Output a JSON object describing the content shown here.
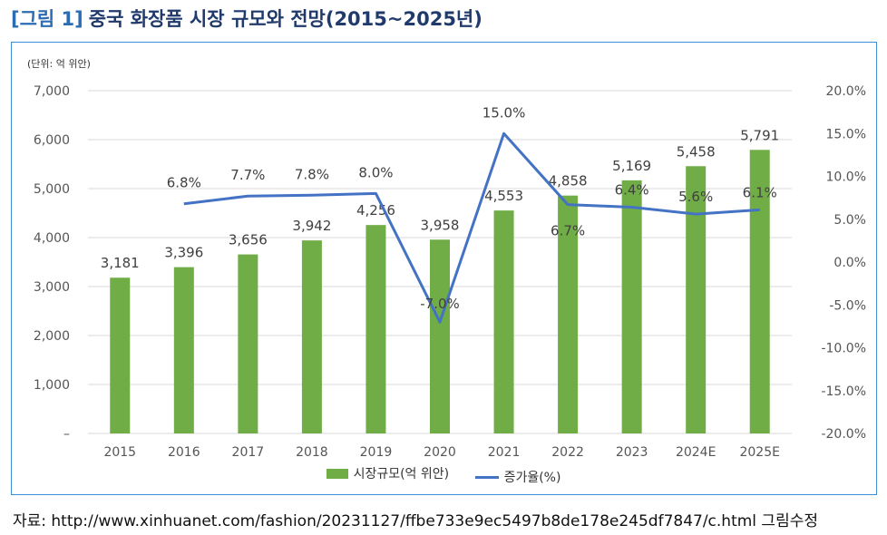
{
  "title": {
    "figure_number": "[그림 1]",
    "text": "중국 화장품 시장 규모와 전망(2015~2025년)"
  },
  "unit_label": "(단위: 억 위안)",
  "source": "자료: http://www.xinhuanet.com/fashion/20231127/ffbe733e9ec5497b8de178e245df7847/c.html 그림수정",
  "colors": {
    "bar": "#70ad47",
    "line": "#4472c4",
    "frame": "#3d8fd6",
    "grid": "#d9d9d9"
  },
  "chart_data": {
    "type": "bar",
    "categories": [
      "2015",
      "2016",
      "2017",
      "2018",
      "2019",
      "2020",
      "2021",
      "2022",
      "2023",
      "2024E",
      "2025E"
    ],
    "series": [
      {
        "name": "시장규모(억 위안)",
        "type": "bar",
        "axis": "left",
        "values": [
          3181,
          3396,
          3656,
          3942,
          4256,
          3958,
          4553,
          4858,
          5169,
          5458,
          5791
        ],
        "labels": [
          "3,181",
          "3,396",
          "3,656",
          "3,942",
          "4,256",
          "3,958",
          "4,553",
          "4,858",
          "5,169",
          "5,458",
          "5,791"
        ]
      },
      {
        "name": "증가율(%)",
        "type": "line",
        "axis": "right",
        "values": [
          null,
          6.8,
          7.7,
          7.8,
          8.0,
          -7.0,
          15.0,
          6.7,
          6.4,
          5.6,
          6.1
        ],
        "labels": [
          "",
          "6.8%",
          "7.7%",
          "7.8%",
          "8.0%",
          "-7.0%",
          "15.0%",
          "6.7%",
          "6.4%",
          "5.6%",
          "6.1%"
        ]
      }
    ],
    "y_left": {
      "ylim": [
        0,
        7000
      ],
      "ticks": [
        0,
        1000,
        2000,
        3000,
        4000,
        5000,
        6000,
        7000
      ],
      "tick_labels": [
        "–",
        "1,000",
        "2,000",
        "3,000",
        "4,000",
        "5,000",
        "6,000",
        "7,000"
      ]
    },
    "y_right": {
      "ylim": [
        -20,
        20
      ],
      "ticks": [
        -20,
        -15,
        -10,
        -5,
        0,
        5,
        10,
        15,
        20
      ],
      "tick_labels": [
        "-20.0%",
        "-15.0%",
        "-10.0%",
        "-5.0%",
        "0.0%",
        "5.0%",
        "10.0%",
        "15.0%",
        "20.0%"
      ]
    },
    "grid": true,
    "legend": "bottom"
  }
}
